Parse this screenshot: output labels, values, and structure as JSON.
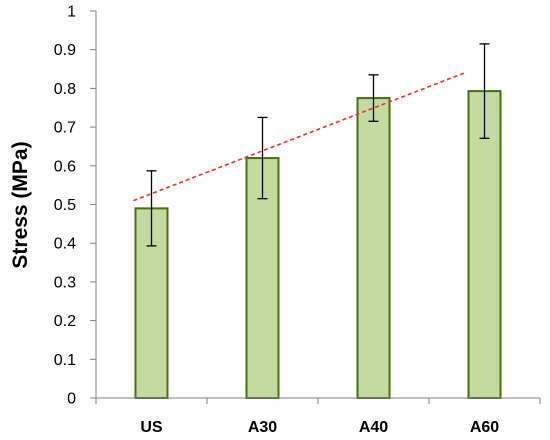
{
  "chart_data": {
    "type": "bar",
    "title": "",
    "xlabel": "",
    "ylabel": "Stress (MPa)",
    "ylim": [
      0,
      1
    ],
    "yticks": [
      "0",
      "0.1",
      "0.2",
      "0.3",
      "0.4",
      "0.5",
      "0.6",
      "0.7",
      "0.8",
      "0.9",
      "1"
    ],
    "categories": [
      "US",
      "A30",
      "A40",
      "A60"
    ],
    "values": [
      0.49,
      0.62,
      0.775,
      0.793
    ],
    "error": [
      0.097,
      0.105,
      0.06,
      0.122
    ],
    "trendline": {
      "type": "linear",
      "style": "dashed",
      "color": "#e8322a",
      "start": 0.51,
      "end": 0.84
    },
    "grid": false,
    "legend": "none",
    "colors": {
      "bar_fill": "#c4dba0",
      "bar_stroke": "#4a6e12",
      "error_bar": "#000000",
      "axis": "#808080"
    }
  }
}
